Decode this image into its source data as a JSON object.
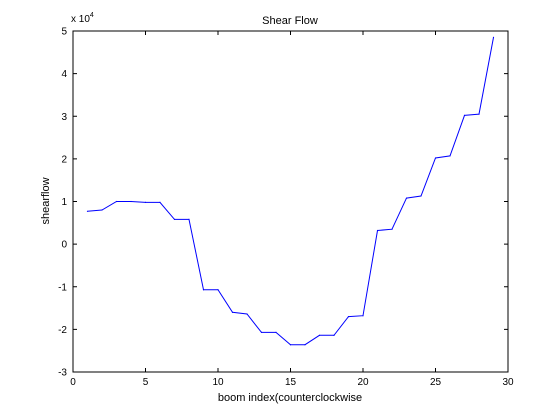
{
  "chart_data": {
    "type": "line",
    "title": "Shear Flow",
    "xlabel": "boom index(counterclockwise",
    "ylabel": "shearflow",
    "y_multiplier": {
      "base": "x 10",
      "power": "4"
    },
    "xlim": [
      0,
      30
    ],
    "ylim": [
      -3,
      5
    ],
    "xticks": [
      0,
      5,
      10,
      15,
      20,
      25,
      30
    ],
    "yticks": [
      -3,
      -2,
      -1,
      0,
      1,
      2,
      3,
      4,
      5
    ],
    "grid": false,
    "series": [
      {
        "color": "#0000ff",
        "x": [
          1,
          2,
          3,
          4,
          5,
          6,
          7,
          8,
          9,
          10,
          11,
          12,
          13,
          14,
          15,
          16,
          17,
          18,
          19,
          20,
          21,
          22,
          23,
          24,
          25,
          26,
          27,
          28,
          29
        ],
        "y": [
          0.77,
          0.8,
          1.0,
          1.0,
          0.98,
          0.98,
          0.58,
          0.58,
          -1.07,
          -1.07,
          -1.6,
          -1.64,
          -2.07,
          -2.07,
          -2.36,
          -2.36,
          -2.14,
          -2.14,
          -1.7,
          -1.68,
          0.32,
          0.35,
          1.08,
          1.13,
          2.02,
          2.07,
          3.02,
          3.05,
          4.85
        ]
      }
    ]
  }
}
